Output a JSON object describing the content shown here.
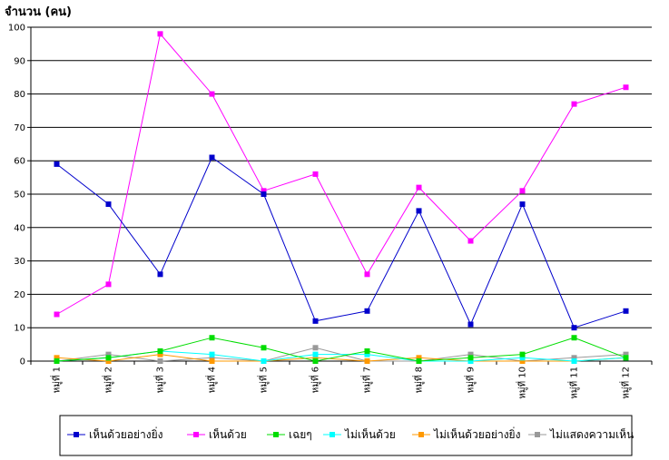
{
  "chart_data": {
    "type": "line",
    "ylabel": "จำนวน (คน)",
    "ylim": [
      0,
      100
    ],
    "yticks": [
      0,
      10,
      20,
      30,
      40,
      50,
      60,
      70,
      80,
      90,
      100
    ],
    "grid": true,
    "legend_position": "bottom",
    "categories": [
      "หมู่ที่ 1",
      "หมู่ที่ 2",
      "หมู่ที่ 3",
      "หมู่ที่ 4",
      "หมู่ที่ 5",
      "หมู่ที่ 6",
      "หมู่ที่ 7",
      "หมู่ที่ 8",
      "หมู่ที่ 9",
      "หมู่ที่ 10",
      "หมู่ที่ 11",
      "หมู่ที่ 12"
    ],
    "series": [
      {
        "name": "เห็นด้วยอย่างยิ่ง",
        "color": "#0000cc",
        "values": [
          59,
          47,
          26,
          61,
          50,
          12,
          15,
          45,
          11,
          47,
          10,
          15
        ]
      },
      {
        "name": "เห็นด้วย",
        "color": "#ff00ff",
        "values": [
          14,
          23,
          98,
          80,
          51,
          56,
          26,
          52,
          36,
          51,
          77,
          82
        ]
      },
      {
        "name": "เฉยๆ",
        "color": "#00dd00",
        "values": [
          0,
          1,
          3,
          7,
          4,
          0,
          3,
          0,
          1,
          2,
          7,
          1
        ]
      },
      {
        "name": "ไม่เห็นด้วย",
        "color": "#00ffff",
        "values": [
          0,
          1,
          3,
          2,
          0,
          2,
          2,
          0,
          0,
          1,
          0,
          1
        ]
      },
      {
        "name": "ไม่เห็นด้วยอย่างยิ่ง",
        "color": "#ff9900",
        "values": [
          1,
          0,
          2,
          0,
          0,
          1,
          0,
          1,
          0,
          0,
          0,
          1
        ]
      },
      {
        "name": "ไม่แสดงความเห็น",
        "color": "#999999",
        "values": [
          0,
          2,
          0,
          1,
          0,
          4,
          0,
          0,
          2,
          0,
          1,
          2
        ]
      }
    ]
  }
}
